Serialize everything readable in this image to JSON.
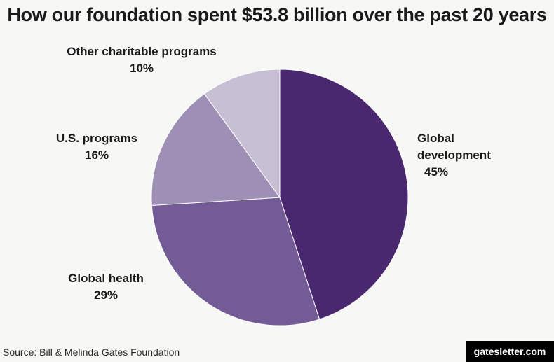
{
  "title": "How our foundation spent $53.8 billion over the past 20 years",
  "source": "Source: Bill & Melinda Gates Foundation",
  "brand": "gatesletter.com",
  "chart_data": {
    "type": "pie",
    "title": "How our foundation spent $53.8 billion over the past 20 years",
    "slices": [
      {
        "label": "Global development",
        "value": 45,
        "display": "45%",
        "color": "#4a2870"
      },
      {
        "label": "Global health",
        "value": 29,
        "display": "29%",
        "color": "#735c95"
      },
      {
        "label": "U.S. programs",
        "value": 16,
        "display": "16%",
        "color": "#9e8fb5"
      },
      {
        "label": "Other charitable programs",
        "value": 10,
        "display": "10%",
        "color": "#c7bfd4"
      }
    ],
    "unit": "%",
    "legend": "none (direct labels)",
    "start_angle": "12 o'clock",
    "direction": "clockwise"
  }
}
